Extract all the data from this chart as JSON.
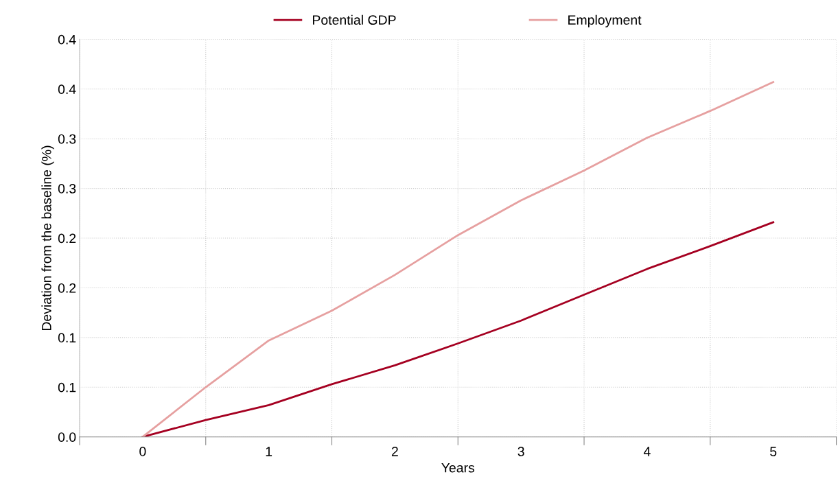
{
  "chart_data": {
    "type": "line",
    "xlabel": "Years",
    "ylabel": "Deviation from the baseline (%)",
    "xlim": [
      -0.5,
      5.5
    ],
    "xticks": [
      {
        "value": -0.5,
        "label": null
      },
      {
        "value": 0,
        "label": "0"
      },
      {
        "value": 0.5,
        "label": null
      },
      {
        "value": 1,
        "label": "1"
      },
      {
        "value": 1.5,
        "label": null
      },
      {
        "value": 2,
        "label": "2"
      },
      {
        "value": 2.5,
        "label": null
      },
      {
        "value": 3,
        "label": "3"
      },
      {
        "value": 3.5,
        "label": null
      },
      {
        "value": 4,
        "label": "4"
      },
      {
        "value": 4.5,
        "label": null
      },
      {
        "value": 5,
        "label": "5"
      },
      {
        "value": 5.5,
        "label": null
      }
    ],
    "ylim": [
      0,
      0.4
    ],
    "yticks": [
      {
        "value": 0,
        "label": "0.0"
      },
      {
        "value": 0.05,
        "label": "0.1"
      },
      {
        "value": 0.1,
        "label": "0.1"
      },
      {
        "value": 0.15,
        "label": "0.2"
      },
      {
        "value": 0.2,
        "label": "0.2"
      },
      {
        "value": 0.25,
        "label": "0.3"
      },
      {
        "value": 0.3,
        "label": "0.3"
      },
      {
        "value": 0.35,
        "label": "0.4"
      },
      {
        "value": 0.4,
        "label": "0.4"
      }
    ],
    "x": [
      0,
      0.5,
      1,
      1.5,
      2,
      2.5,
      3,
      3.5,
      4,
      4.5,
      5
    ],
    "series": [
      {
        "name": "Potential GDP",
        "color": "#a50021",
        "values": [
          0,
          0.017,
          0.032,
          0.053,
          0.072,
          0.094,
          0.117,
          0.143,
          0.169,
          0.192,
          0.216
        ]
      },
      {
        "name": "Employment",
        "color": "#e6a0a0",
        "values": [
          0,
          0.05,
          0.097,
          0.127,
          0.163,
          0.203,
          0.238,
          0.268,
          0.301,
          0.328,
          0.357
        ]
      }
    ],
    "grid": true,
    "legend": "top",
    "marker": "none",
    "line_style": "solid"
  }
}
